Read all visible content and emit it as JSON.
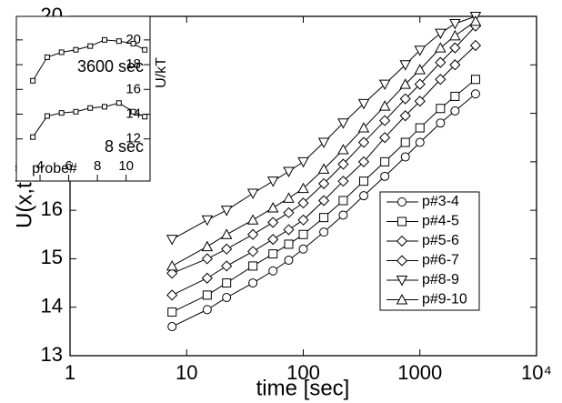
{
  "chart_data": [
    {
      "type": "line",
      "xlabel": "time [sec]",
      "ylabel": "U(x,t)/kT",
      "xscale": "log",
      "xlim": [
        1,
        10000
      ],
      "ylim": [
        13,
        20
      ],
      "xticks": [
        1,
        10,
        100,
        1000,
        {
          "value": 10000,
          "label": "10⁴"
        }
      ],
      "yticks": [
        13,
        14,
        15,
        16,
        17,
        18,
        19,
        20
      ],
      "legend": "right",
      "x": [
        7.5,
        15,
        22,
        37,
        55,
        75,
        100,
        150,
        220,
        330,
        500,
        750,
        1000,
        1500,
        2000,
        3000
      ],
      "series": [
        {
          "name": "p#3-4",
          "color": "#000000",
          "marker": "circle",
          "values": [
            13.6,
            13.95,
            14.2,
            14.5,
            14.75,
            14.97,
            15.2,
            15.55,
            15.9,
            16.3,
            16.7,
            17.1,
            17.4,
            17.8,
            18.05,
            18.4
          ]
        },
        {
          "name": "p#4-5",
          "color": "#000000",
          "marker": "square",
          "values": [
            13.9,
            14.25,
            14.5,
            14.85,
            15.1,
            15.3,
            15.5,
            15.85,
            16.2,
            16.6,
            17.0,
            17.4,
            17.7,
            18.1,
            18.35,
            18.7
          ]
        },
        {
          "name": "p#5-6",
          "color": "#000000",
          "marker": "diamond",
          "values": [
            14.25,
            14.6,
            14.85,
            15.15,
            15.4,
            15.6,
            15.8,
            16.2,
            16.6,
            17.0,
            17.5,
            17.95,
            18.25,
            18.7,
            19.0,
            19.4
          ]
        },
        {
          "name": "p#6-7",
          "color": "#000000",
          "marker": "diamond",
          "values": [
            14.7,
            15.0,
            15.2,
            15.5,
            15.75,
            15.95,
            16.15,
            16.55,
            16.95,
            17.4,
            17.85,
            18.3,
            18.6,
            19.05,
            19.35,
            19.8
          ]
        },
        {
          "name": "p#8-9",
          "color": "#000000",
          "marker": "triangle-down",
          "values": [
            15.4,
            15.8,
            16.0,
            16.35,
            16.6,
            16.8,
            17.0,
            17.4,
            17.8,
            18.2,
            18.6,
            19.0,
            19.3,
            19.65,
            19.85,
            20.0
          ]
        },
        {
          "name": "p#9-10",
          "color": "#000000",
          "marker": "triangle-up",
          "values": [
            14.85,
            15.25,
            15.5,
            15.8,
            16.05,
            16.25,
            16.45,
            16.85,
            17.25,
            17.7,
            18.15,
            18.6,
            18.9,
            19.35,
            19.6,
            19.9
          ]
        }
      ]
    },
    {
      "type": "line",
      "xlabel": "probe#",
      "ylabel": "U/kT",
      "xlim": [
        2.35,
        11.67
      ],
      "ylim": [
        8.6,
        21.9
      ],
      "xticks": [
        4,
        6,
        8,
        10
      ],
      "yticks": [
        12,
        14,
        16,
        18,
        20
      ],
      "x": [
        3.5,
        4.5,
        5.5,
        6.5,
        7.5,
        8.5,
        9.5,
        10.5,
        11.3
      ],
      "annotations": [
        "3600 sec",
        "8 sec"
      ],
      "series": [
        {
          "color": "#000000",
          "marker": "square",
          "values": [
            16.7,
            18.6,
            19.0,
            19.2,
            19.5,
            20.0,
            19.9,
            19.7,
            19.2
          ]
        },
        {
          "color": "#000000",
          "marker": "square",
          "values": [
            12.15,
            13.85,
            14.1,
            14.2,
            14.5,
            14.6,
            14.9,
            14.2,
            13.8
          ]
        }
      ]
    }
  ]
}
